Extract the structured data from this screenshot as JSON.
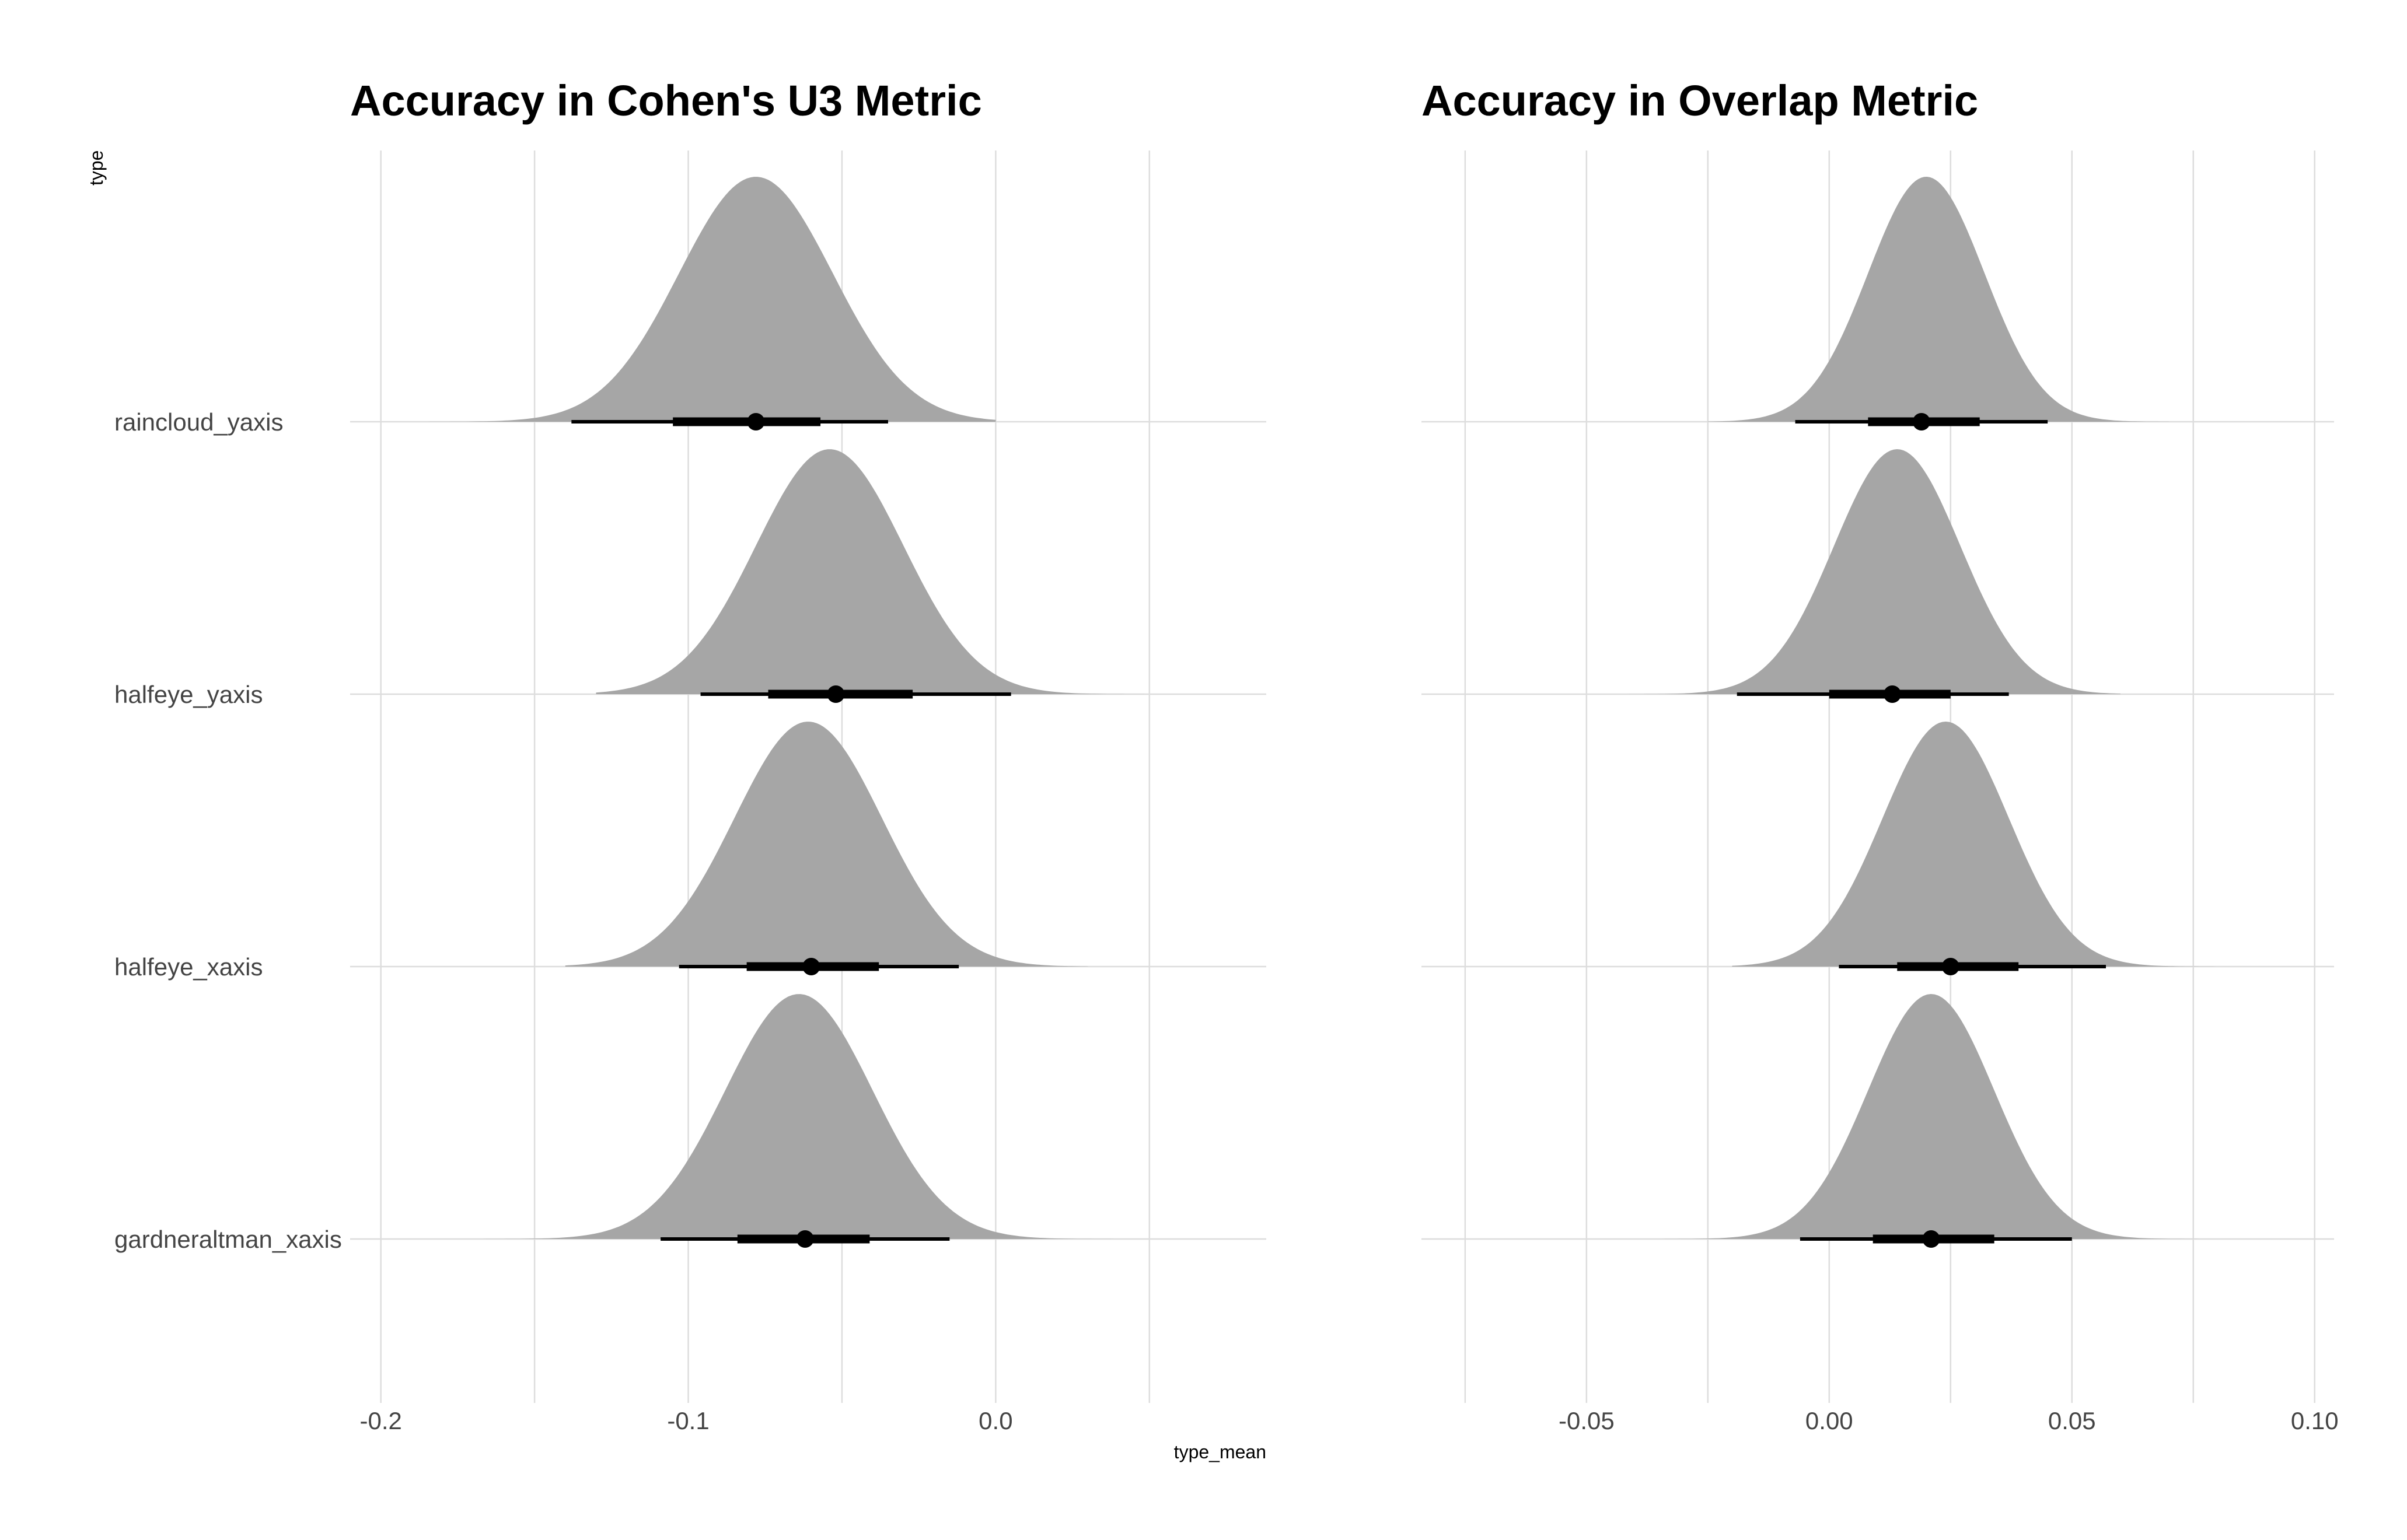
{
  "axis_titles": {
    "y": "type",
    "x": "type_mean"
  },
  "chart_data": [
    {
      "type": "halfeye",
      "title": "Accuracy in Cohen's U3 Metric",
      "xlabel": "type_mean",
      "ylabel": "type",
      "xlim": [
        -0.21,
        0.088
      ],
      "x_ticks": [
        -0.2,
        -0.1,
        0.0
      ],
      "x_tick_labels": [
        "-0.2",
        "-0.1",
        "0.0"
      ],
      "x_minor_gridlines": [
        -0.15,
        -0.05,
        0.05
      ],
      "grid": true,
      "fill_color": "#a6a6a6",
      "series": [
        {
          "name": "raincloud_yaxis",
          "mean": -0.078,
          "sd": 0.025,
          "point": -0.078,
          "ci66": [
            -0.105,
            -0.057
          ],
          "ci95": [
            -0.138,
            -0.035
          ],
          "tail_low": -0.185,
          "tail_high": 0.0
        },
        {
          "name": "halfeye_yaxis",
          "mean": -0.054,
          "sd": 0.024,
          "point": -0.052,
          "ci66": [
            -0.074,
            -0.027
          ],
          "ci95": [
            -0.096,
            0.005
          ],
          "tail_low": -0.13,
          "tail_high": 0.05
        },
        {
          "name": "halfeye_xaxis",
          "mean": -0.061,
          "sd": 0.024,
          "point": -0.06,
          "ci66": [
            -0.081,
            -0.038
          ],
          "ci95": [
            -0.103,
            -0.012
          ],
          "tail_low": -0.14,
          "tail_high": 0.03
        },
        {
          "name": "gardneraltman_xaxis",
          "mean": -0.064,
          "sd": 0.024,
          "point": -0.062,
          "ci66": [
            -0.084,
            -0.041
          ],
          "ci95": [
            -0.109,
            -0.015
          ],
          "tail_low": -0.175,
          "tail_high": 0.04
        }
      ]
    },
    {
      "type": "halfeye",
      "title": "Accuracy in Overlap Metric",
      "xlabel": "",
      "ylabel": "",
      "xlim": [
        -0.084,
        0.104
      ],
      "x_ticks": [
        -0.05,
        0.0,
        0.05,
        0.1
      ],
      "x_tick_labels": [
        "-0.05",
        "0.00",
        "0.05",
        "0.10"
      ],
      "x_minor_gridlines": [
        -0.075,
        -0.025,
        0.025,
        0.075
      ],
      "grid": true,
      "fill_color": "#a6a6a6",
      "series": [
        {
          "name": "raincloud_yaxis",
          "mean": 0.02,
          "sd": 0.012,
          "point": 0.019,
          "ci66": [
            0.008,
            0.031
          ],
          "ci95": [
            -0.007,
            0.045
          ],
          "tail_low": -0.025,
          "tail_high": 0.07
        },
        {
          "name": "halfeye_yaxis",
          "mean": 0.014,
          "sd": 0.013,
          "point": 0.013,
          "ci66": [
            0.0,
            0.025
          ],
          "ci95": [
            -0.019,
            0.037
          ],
          "tail_low": -0.05,
          "tail_high": 0.06
        },
        {
          "name": "halfeye_xaxis",
          "mean": 0.024,
          "sd": 0.013,
          "point": 0.025,
          "ci66": [
            0.014,
            0.039
          ],
          "ci95": [
            0.002,
            0.057
          ],
          "tail_low": -0.02,
          "tail_high": 0.09
        },
        {
          "name": "gardneraltman_xaxis",
          "mean": 0.021,
          "sd": 0.013,
          "point": 0.021,
          "ci66": [
            0.009,
            0.034
          ],
          "ci95": [
            -0.006,
            0.05
          ],
          "tail_low": -0.04,
          "tail_high": 0.085
        }
      ]
    }
  ]
}
